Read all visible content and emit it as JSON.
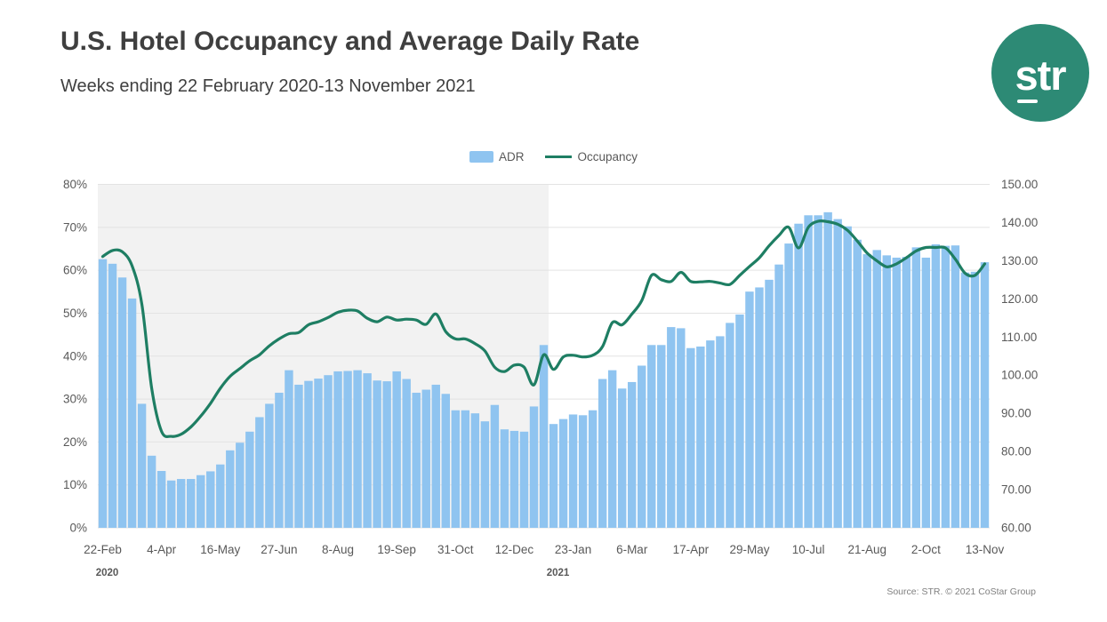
{
  "header": {
    "title": "U.S. Hotel Occupancy and Average Daily Rate",
    "subtitle": "Weeks ending 22 February 2020-13 November 2021"
  },
  "logo": {
    "text": "str",
    "background_color": "#2D8A75",
    "text_color": "#ffffff"
  },
  "legend": {
    "adr_label": "ADR",
    "occupancy_label": "Occupancy"
  },
  "footer": {
    "source": "Source: STR. © 2021 CoStar Group"
  },
  "colors": {
    "bar": "#8FC4F0",
    "line": "#1E7E63",
    "shaded_band": "#F2F2F2",
    "gridline": "#E3E3E3",
    "axis_text": "#595959",
    "year_text": "#595959"
  },
  "chart_data": {
    "type": "bar+line combo, weekly data, 91 weeks",
    "title": "U.S. Hotel Occupancy and Average Daily Rate",
    "left_axis": {
      "min": 0,
      "max": 80,
      "ticks": [
        "0%",
        "10%",
        "20%",
        "30%",
        "40%",
        "50%",
        "60%",
        "70%",
        "80%"
      ],
      "series": "Occupancy"
    },
    "right_axis": {
      "min": 60,
      "max": 150,
      "ticks": [
        "60.00",
        "70.00",
        "80.00",
        "90.00",
        "100.00",
        "110.00",
        "120.00",
        "130.00",
        "140.00",
        "150.00"
      ],
      "series": "ADR"
    },
    "x_tick_labels": [
      "22-Feb",
      "4-Apr",
      "16-May",
      "27-Jun",
      "8-Aug",
      "19-Sep",
      "31-Oct",
      "12-Dec",
      "23-Jan",
      "6-Mar",
      "17-Apr",
      "29-May",
      "10-Jul",
      "21-Aug",
      "2-Oct",
      "13-Nov"
    ],
    "x_tick_indices": [
      0,
      6,
      12,
      18,
      24,
      30,
      36,
      42,
      48,
      54,
      60,
      66,
      72,
      78,
      84,
      90
    ],
    "year_labels": [
      {
        "text": "2020",
        "at_index": 0
      },
      {
        "text": "2021",
        "at_index": 46
      }
    ],
    "shaded_region": {
      "from_index": 0,
      "to_index": 46,
      "note": "2020 portion shaded light gray"
    },
    "grid": "horizontal only",
    "legend_position": "top center",
    "series": [
      {
        "name": "ADR",
        "type": "bar",
        "axis": "right",
        "color": "#8FC4F0",
        "values": [
          130.4,
          129.2,
          125.6,
          120.1,
          92.5,
          78.9,
          74.9,
          72.4,
          72.8,
          72.8,
          73.8,
          74.8,
          76.6,
          80.3,
          82.3,
          85.2,
          89.0,
          92.5,
          95.4,
          101.3,
          97.5,
          98.5,
          99.1,
          100.0,
          101.0,
          101.1,
          101.3,
          100.5,
          98.6,
          98.4,
          101.0,
          99.0,
          95.4,
          96.2,
          97.5,
          95.1,
          90.8,
          90.8,
          90.0,
          87.9,
          92.2,
          85.8,
          85.4,
          85.2,
          91.8,
          107.9,
          87.2,
          88.5,
          89.7,
          89.5,
          90.8,
          99.0,
          101.3,
          96.5,
          98.2,
          102.5,
          107.9,
          107.9,
          112.6,
          112.3,
          107.1,
          107.5,
          109.1,
          110.2,
          113.7,
          115.9,
          121.9,
          123.0,
          125.0,
          129.0,
          134.5,
          139.7,
          141.9,
          141.9,
          142.7,
          140.9,
          139.0,
          135.5,
          131.7,
          132.8,
          131.4,
          130.8,
          131.0,
          133.5,
          130.8,
          134.3,
          133.9,
          134.0,
          126.9,
          127.1,
          129.6
        ]
      },
      {
        "name": "Occupancy",
        "type": "line",
        "axis": "left",
        "color": "#1E7E63",
        "values": [
          63.2,
          64.6,
          64.3,
          61.0,
          52.0,
          32.5,
          22.5,
          21.3,
          21.8,
          23.5,
          26.0,
          29.0,
          32.5,
          35.3,
          37.1,
          38.9,
          40.3,
          42.4,
          44.0,
          45.2,
          45.5,
          47.3,
          48.0,
          49.0,
          50.2,
          50.7,
          50.5,
          48.8,
          48.0,
          49.1,
          48.4,
          48.6,
          48.4,
          47.4,
          49.8,
          45.7,
          44.0,
          44.0,
          42.9,
          41.2,
          37.4,
          36.4,
          37.9,
          37.4,
          33.3,
          40.3,
          36.9,
          39.8,
          40.2,
          39.8,
          40.2,
          42.2,
          47.8,
          47.3,
          49.8,
          52.9,
          58.8,
          57.8,
          57.4,
          59.5,
          57.4,
          57.3,
          57.4,
          57.0,
          56.7,
          58.8,
          60.9,
          62.9,
          65.7,
          68.1,
          70.0,
          65.2,
          70.0,
          71.4,
          71.3,
          70.7,
          69.3,
          66.8,
          64.0,
          62.2,
          60.8,
          61.5,
          62.9,
          64.5,
          65.3,
          65.3,
          65.2,
          62.6,
          59.3,
          58.8,
          61.5
        ]
      }
    ]
  }
}
